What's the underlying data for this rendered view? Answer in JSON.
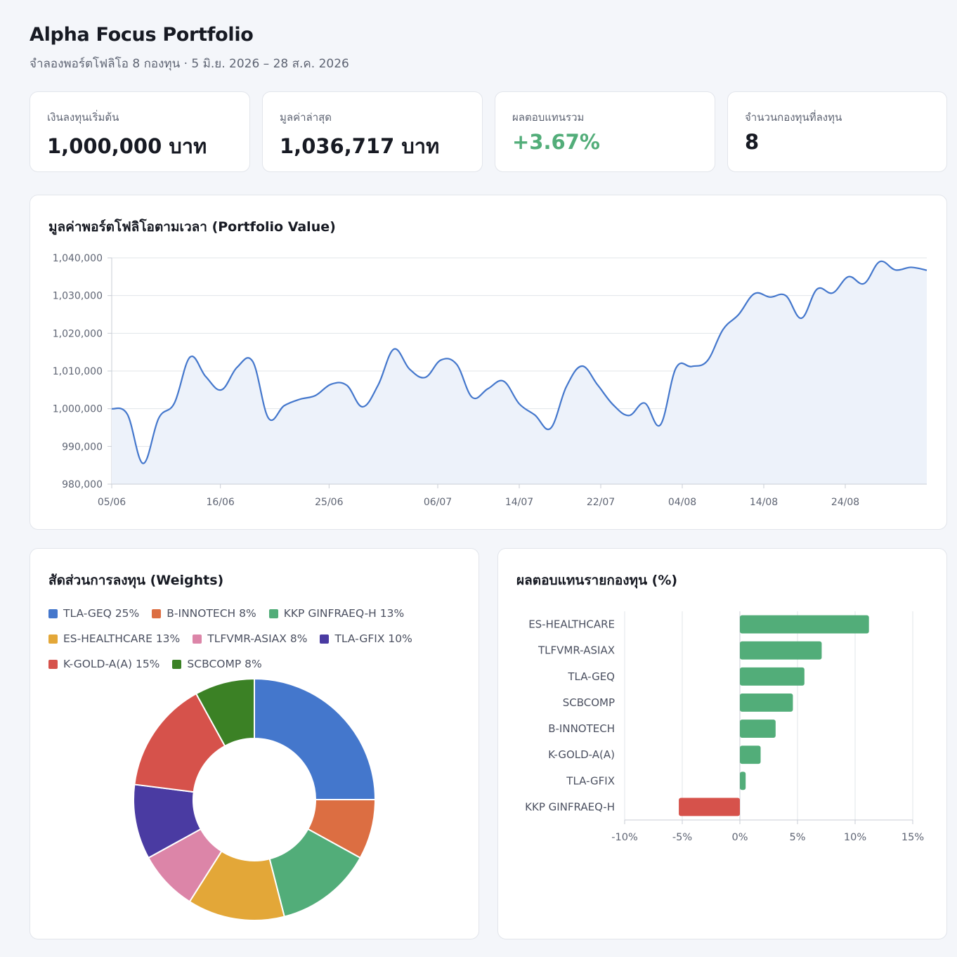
{
  "header": {
    "title": "Alpha Focus Portfolio",
    "subtitle": "จำลองพอร์ตโฟลิโอ 8 กองทุน  ·  5 มิ.ย. 2026 – 28 ส.ค. 2026"
  },
  "kpis": [
    {
      "label": "เงินลงทุนเริ่มต้น",
      "value": "1,000,000 บาท"
    },
    {
      "label": "มูลค่าล่าสุด",
      "value": "1,036,717 บาท"
    },
    {
      "label": "ผลตอบแทนรวม",
      "value": "+3.67%"
    },
    {
      "label": "จำนวนกองทุนที่ลงทุน",
      "value": "8"
    }
  ],
  "colors": {
    "line": "#4477cc",
    "area": "#edf2fa",
    "positive": "#52ad79",
    "negative": "#d6524b",
    "grid": "#e1e4ea"
  },
  "chart_data": [
    {
      "type": "line",
      "title": "มูลค่าพอร์ตโฟลิโอตามเวลา (Portfolio Value)",
      "ylim": [
        980000,
        1040000
      ],
      "yticks": [
        "1,040,000",
        "1,030,000",
        "1,020,000",
        "1,010,000",
        "1,000,000",
        "990,000",
        "980,000"
      ],
      "xticks": [
        "05/06",
        "16/06",
        "25/06",
        "06/07",
        "14/07",
        "22/07",
        "04/08",
        "14/08",
        "24/08"
      ],
      "grid": true,
      "series": [
        {
          "values": [
            1000000,
            998500,
            985500,
            997500,
            1001500,
            1013700,
            1008500,
            1005000,
            1011000,
            1012500,
            997500,
            1000800,
            1002500,
            1003500,
            1006500,
            1006200,
            1000500,
            1006300,
            1015800,
            1010500,
            1008300,
            1012900,
            1011800,
            1003000,
            1005300,
            1007300,
            1001300,
            998300,
            994800,
            1005800,
            1011300,
            1006300,
            1001000,
            998200,
            1001500,
            995700,
            1010800,
            1011200,
            1012700,
            1021000,
            1025000,
            1030500,
            1029600,
            1030000,
            1024000,
            1031700,
            1030700,
            1035000,
            1033200,
            1039000,
            1036800,
            1037500,
            1036700
          ]
        }
      ]
    },
    {
      "type": "pie",
      "title": "สัดส่วนการลงทุน (Weights)",
      "legend": "top",
      "slices": [
        {
          "label": "TLA-GEQ",
          "legend_text": "TLA-GEQ 25%",
          "value": 25,
          "color": "#4477cc"
        },
        {
          "label": "B-INNOTECH",
          "legend_text": "B-INNOTECH 8%",
          "value": 8,
          "color": "#dc6e42"
        },
        {
          "label": "KKP GINFRAEQ-H",
          "legend_text": "KKP GINFRAEQ-H 13%",
          "value": 13,
          "color": "#52ad79"
        },
        {
          "label": "ES-HEALTHCARE",
          "legend_text": "ES-HEALTHCARE 13%",
          "value": 13,
          "color": "#e3a738"
        },
        {
          "label": "TLFVMR-ASIAX",
          "legend_text": "TLFVMR-ASIAX 8%",
          "value": 8,
          "color": "#dc85a8"
        },
        {
          "label": "TLA-GFIX",
          "legend_text": "TLA-GFIX 10%",
          "value": 10,
          "color": "#4a3ba2"
        },
        {
          "label": "K-GOLD-A(A)",
          "legend_text": "K-GOLD-A(A) 15%",
          "value": 15,
          "color": "#d6524b"
        },
        {
          "label": "SCBCOMP",
          "legend_text": "SCBCOMP 8%",
          "value": 8,
          "color": "#3b8125"
        }
      ]
    },
    {
      "type": "bar",
      "orientation": "horizontal",
      "title": "ผลตอบแทนรายกองทุน (%)",
      "xlim": [
        -10,
        15
      ],
      "xticks": [
        "-10%",
        "-5%",
        "0%",
        "5%",
        "10%",
        "15%"
      ],
      "grid": true,
      "categories": [
        "ES-HEALTHCARE",
        "TLFVMR-ASIAX",
        "TLA-GEQ",
        "SCBCOMP",
        "B-INNOTECH",
        "K-GOLD-A(A)",
        "TLA-GFIX",
        "KKP GINFRAEQ-H"
      ],
      "values": [
        11.2,
        7.1,
        5.6,
        4.6,
        3.1,
        1.8,
        0.5,
        -5.3
      ]
    }
  ]
}
